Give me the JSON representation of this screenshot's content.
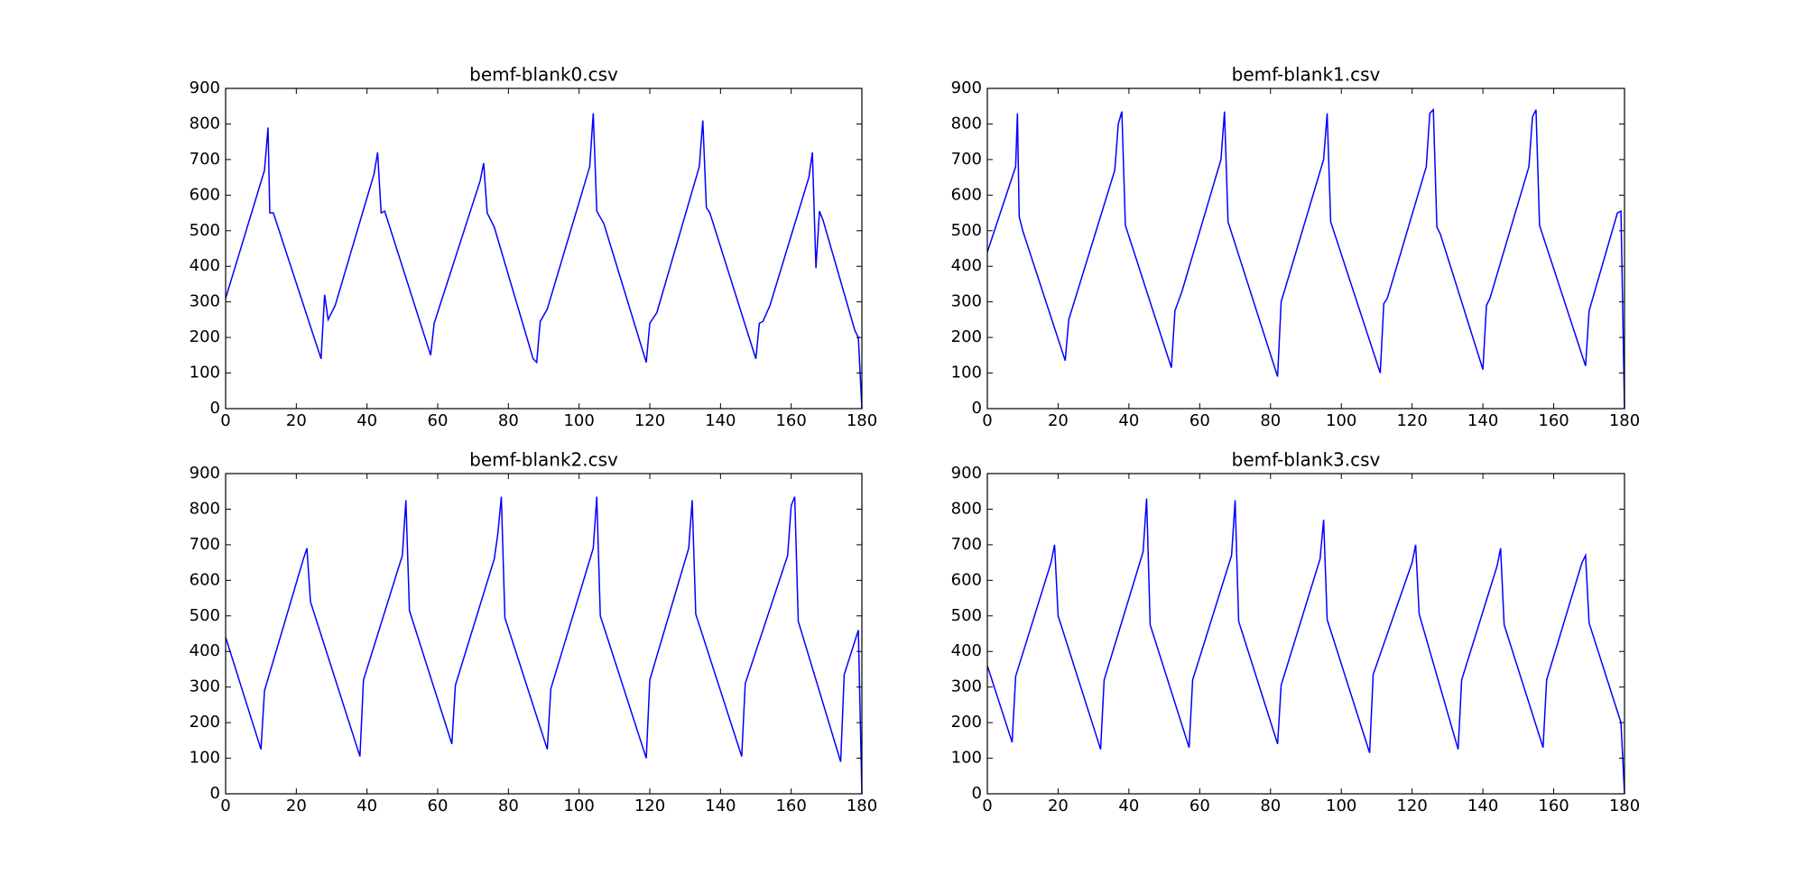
{
  "chart_data": [
    {
      "type": "line",
      "title": "bemf-blank0.csv",
      "color": "#0000ff",
      "xlim": [
        0,
        180
      ],
      "ylim": [
        0,
        900
      ],
      "xticks": [
        0,
        20,
        40,
        60,
        80,
        100,
        120,
        140,
        160,
        180
      ],
      "yticks": [
        0,
        100,
        200,
        300,
        400,
        500,
        600,
        700,
        800,
        900
      ],
      "x": [
        0,
        11,
        12,
        12.5,
        13.5,
        27,
        28,
        29,
        31,
        42,
        43,
        44,
        45,
        58,
        59,
        72,
        73,
        74,
        76,
        87,
        88,
        89,
        91,
        103,
        104,
        105,
        107,
        119,
        120,
        122,
        134,
        135,
        136,
        137,
        150,
        151,
        152,
        154,
        165,
        166,
        167,
        168,
        169,
        178,
        179,
        180
      ],
      "values": [
        310,
        670,
        790,
        550,
        550,
        140,
        320,
        250,
        290,
        660,
        720,
        550,
        555,
        150,
        240,
        640,
        690,
        550,
        510,
        140,
        130,
        245,
        280,
        680,
        830,
        555,
        520,
        130,
        240,
        270,
        680,
        810,
        565,
        550,
        140,
        240,
        245,
        290,
        650,
        720,
        395,
        555,
        530,
        220,
        200,
        0
      ]
    },
    {
      "type": "line",
      "title": "bemf-blank1.csv",
      "color": "#0000ff",
      "xlim": [
        0,
        180
      ],
      "ylim": [
        0,
        900
      ],
      "xticks": [
        0,
        20,
        40,
        60,
        80,
        100,
        120,
        140,
        160,
        180
      ],
      "yticks": [
        0,
        100,
        200,
        300,
        400,
        500,
        600,
        700,
        800,
        900
      ],
      "x": [
        0,
        8,
        8.5,
        9,
        10,
        22,
        23,
        36,
        37,
        38,
        39,
        52,
        53,
        55,
        66,
        67,
        68,
        82,
        83,
        95,
        96,
        97,
        111,
        112,
        113,
        124,
        125,
        126,
        127,
        128,
        140,
        141,
        142,
        153,
        154,
        155,
        156,
        169,
        170,
        178,
        179,
        180
      ],
      "values": [
        440,
        680,
        830,
        540,
        500,
        135,
        250,
        670,
        800,
        835,
        515,
        115,
        275,
        330,
        700,
        835,
        525,
        90,
        300,
        700,
        830,
        525,
        100,
        295,
        310,
        680,
        830,
        840,
        510,
        490,
        110,
        290,
        310,
        680,
        820,
        840,
        515,
        120,
        275,
        550,
        555,
        0
      ]
    },
    {
      "type": "line",
      "title": "bemf-blank2.csv",
      "color": "#0000ff",
      "xlim": [
        0,
        180
      ],
      "ylim": [
        0,
        900
      ],
      "xticks": [
        0,
        20,
        40,
        60,
        80,
        100,
        120,
        140,
        160,
        180
      ],
      "yticks": [
        0,
        100,
        200,
        300,
        400,
        500,
        600,
        700,
        800,
        900
      ],
      "x": [
        0,
        10,
        11,
        22,
        23,
        24,
        38,
        39,
        50,
        51,
        52,
        64,
        65,
        76,
        77,
        78,
        79,
        91,
        92,
        104,
        105,
        106,
        119,
        120,
        131,
        132,
        133,
        146,
        147,
        159,
        160,
        161,
        162,
        174,
        175,
        179,
        180
      ],
      "values": [
        440,
        125,
        290,
        660,
        690,
        540,
        105,
        320,
        670,
        825,
        515,
        140,
        305,
        660,
        730,
        835,
        495,
        125,
        295,
        690,
        835,
        500,
        100,
        320,
        690,
        825,
        505,
        105,
        310,
        670,
        810,
        835,
        485,
        90,
        335,
        460,
        0
      ]
    },
    {
      "type": "line",
      "title": "bemf-blank3.csv",
      "color": "#0000ff",
      "xlim": [
        0,
        180
      ],
      "ylim": [
        0,
        900
      ],
      "xticks": [
        0,
        20,
        40,
        60,
        80,
        100,
        120,
        140,
        160,
        180
      ],
      "yticks": [
        0,
        100,
        200,
        300,
        400,
        500,
        600,
        700,
        800,
        900
      ],
      "x": [
        0,
        7,
        8,
        18,
        19,
        20,
        32,
        33,
        44,
        45,
        46,
        57,
        58,
        69,
        70,
        71,
        82,
        83,
        94,
        95,
        96,
        108,
        109,
        120,
        121,
        122,
        133,
        134,
        144,
        145,
        146,
        157,
        158,
        168,
        169,
        170,
        179,
        180
      ],
      "values": [
        360,
        145,
        330,
        650,
        700,
        500,
        125,
        320,
        680,
        830,
        475,
        130,
        320,
        670,
        825,
        485,
        140,
        305,
        660,
        770,
        490,
        115,
        335,
        650,
        700,
        505,
        125,
        320,
        640,
        690,
        475,
        130,
        320,
        650,
        670,
        480,
        200,
        0
      ]
    }
  ]
}
